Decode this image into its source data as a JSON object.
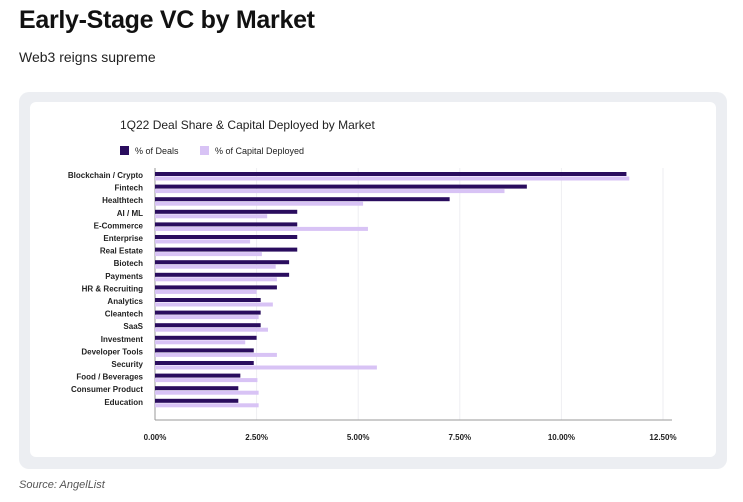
{
  "header": {
    "title": "Early-Stage VC by Market",
    "subtitle": "Web3 reigns supreme"
  },
  "source": "Source: AngelList",
  "colors": {
    "deals": "#2a0d5e",
    "capital": "#d8c3f5"
  },
  "chart_data": {
    "type": "bar",
    "orientation": "horizontal",
    "title": "1Q22 Deal Share & Capital Deployed by Market",
    "legend_position": "top-left",
    "categories": [
      "Blockchain / Crypto",
      "Fintech",
      "Healthtech",
      "AI / ML",
      "E-Commerce",
      "Enterprise",
      "Real Estate",
      "Biotech",
      "Payments",
      "HR & Recruiting",
      "Analytics",
      "Cleantech",
      "SaaS",
      "Investment",
      "Developer Tools",
      "Security",
      "Food / Beverages",
      "Consumer Product",
      "Education"
    ],
    "series": [
      {
        "name": "% of Deals",
        "values": [
          11.6,
          9.15,
          7.25,
          3.5,
          3.5,
          3.5,
          3.5,
          3.3,
          3.3,
          3.0,
          2.6,
          2.6,
          2.6,
          2.5,
          2.43,
          2.43,
          2.1,
          2.05,
          2.05
        ]
      },
      {
        "name": "% of Capital Deployed",
        "values": [
          11.67,
          8.6,
          5.12,
          2.76,
          5.24,
          2.34,
          2.63,
          2.97,
          3.0,
          2.5,
          2.9,
          2.55,
          2.78,
          2.22,
          3.0,
          5.46,
          2.52,
          2.55,
          2.55
        ]
      }
    ],
    "xlim": [
      0,
      12.5
    ],
    "xticks": [
      "0.00%",
      "2.50%",
      "5.00%",
      "7.50%",
      "10.00%",
      "12.50%"
    ],
    "grid": true
  }
}
